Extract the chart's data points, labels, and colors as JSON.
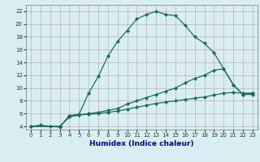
{
  "title": "",
  "xlabel": "Humidex (Indice chaleur)",
  "bg_color": "#d8eef0",
  "grid_color": "#c0b0b0",
  "line_color": "#1a6b5e",
  "xlim": [
    -0.5,
    23.5
  ],
  "ylim": [
    3.5,
    23
  ],
  "xticks": [
    0,
    1,
    2,
    3,
    4,
    5,
    6,
    7,
    8,
    9,
    10,
    11,
    12,
    13,
    14,
    15,
    16,
    17,
    18,
    19,
    20,
    21,
    22,
    23
  ],
  "yticks": [
    4,
    6,
    8,
    10,
    12,
    14,
    16,
    18,
    20,
    22
  ],
  "curve1_x": [
    0,
    1,
    2,
    3,
    4,
    5,
    6,
    7,
    8,
    9,
    10,
    11,
    12,
    13,
    14,
    15,
    16,
    17,
    18,
    19,
    20,
    21,
    22,
    23
  ],
  "curve1_y": [
    4.0,
    4.2,
    4.0,
    3.9,
    5.7,
    5.9,
    9.2,
    11.8,
    15.0,
    17.3,
    19.0,
    20.8,
    21.5,
    22.0,
    21.5,
    21.3,
    19.8,
    18.0,
    17.0,
    15.5,
    13.0,
    10.5,
    9.0,
    9.0
  ],
  "curve2_x": [
    0,
    3,
    4,
    5,
    6,
    7,
    8,
    9,
    10,
    11,
    12,
    13,
    14,
    15,
    16,
    17,
    18,
    19,
    20,
    21,
    22,
    23
  ],
  "curve2_y": [
    4.0,
    4.0,
    5.5,
    5.8,
    6.0,
    6.2,
    6.5,
    6.8,
    7.5,
    8.0,
    8.5,
    9.0,
    9.5,
    10.0,
    10.8,
    11.5,
    12.0,
    12.8,
    13.0,
    10.5,
    9.0,
    9.2
  ],
  "curve3_x": [
    0,
    3,
    4,
    5,
    6,
    7,
    8,
    9,
    10,
    11,
    12,
    13,
    14,
    15,
    16,
    17,
    18,
    19,
    20,
    21,
    22,
    23
  ],
  "curve3_y": [
    4.0,
    4.0,
    5.5,
    5.8,
    5.9,
    6.0,
    6.2,
    6.4,
    6.7,
    7.0,
    7.3,
    7.6,
    7.8,
    8.0,
    8.2,
    8.4,
    8.6,
    8.9,
    9.2,
    9.3,
    9.2,
    9.2
  ],
  "xlabel_color": "#00008b",
  "xlabel_fontsize": 6.5,
  "tick_fontsize": 5,
  "marker": "D",
  "markersize": 2.2,
  "linewidth": 0.9
}
